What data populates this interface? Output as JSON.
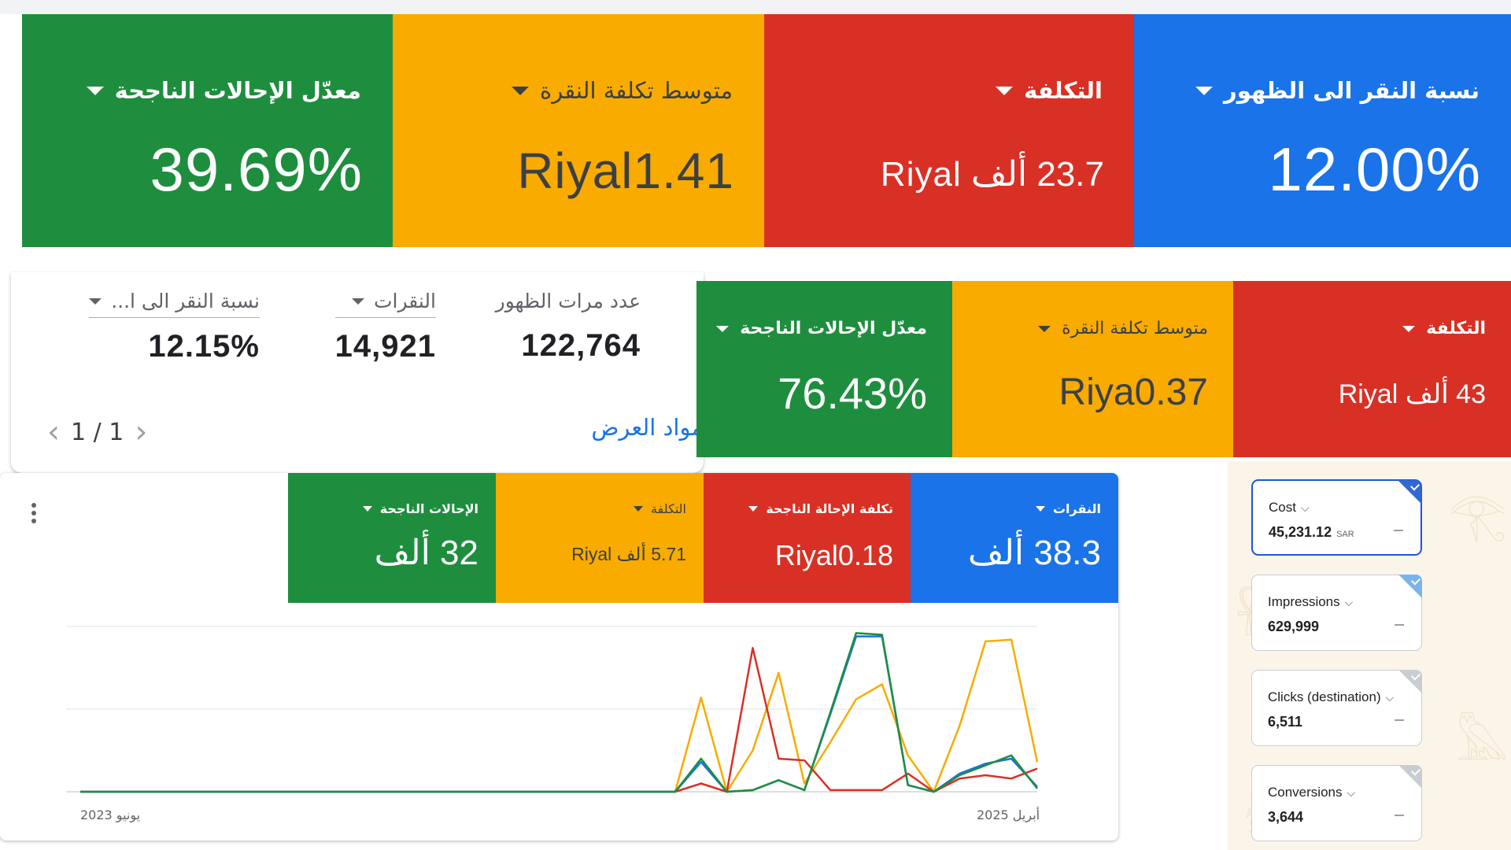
{
  "colors": {
    "blue": "#1a73e8",
    "red": "#d93025",
    "yellow": "#f9ab00",
    "green": "#1e8e3e"
  },
  "row1": [
    {
      "label": "نسبة النقر الى الظهور",
      "value": "12.00%"
    },
    {
      "label": "التكلفة",
      "value": "23.7 ألف Riyal"
    },
    {
      "label": "متوسط تكلفة النقرة",
      "value": "Riyal1.41"
    },
    {
      "label": "معدّل الإحالات الناجحة",
      "value": "39.69%"
    }
  ],
  "summary": {
    "stats": [
      {
        "label": "عدد مرات الظهور",
        "value": "122,764"
      },
      {
        "label": "النقرات",
        "value": "14,921"
      },
      {
        "label": "نسبة النقر الى ا...",
        "value": "12.15%"
      }
    ],
    "pager": "1 / 1",
    "show_link": "مواد العرض"
  },
  "row2": [
    {
      "label": "التكلفة",
      "value": "43 ألف Riyal"
    },
    {
      "label": "متوسط تكلفة النقرة",
      "value": "Riya0.37"
    },
    {
      "label": "معدّل الإحالات الناجحة",
      "value": "76.43%"
    }
  ],
  "row3": [
    {
      "label": "النقرات",
      "value": "38.3 ألف"
    },
    {
      "label": "تكلفة الإحالة الناجحة",
      "value": "Riyal0.18"
    },
    {
      "label": "التكلفة",
      "value": "5.71 ألف Riyal"
    },
    {
      "label": "الإحالات الناجحة",
      "value": "32 ألف"
    }
  ],
  "chart_data": {
    "type": "line",
    "x_start_label": "يونيو 2023",
    "x_end_label": "أبريل 2025",
    "grid": true,
    "ylim": [
      0,
      100
    ],
    "series": [
      {
        "color": "#f9ab00",
        "values": [
          0,
          0,
          0,
          0,
          0,
          0,
          0,
          0,
          0,
          0,
          0,
          0,
          0,
          0,
          0,
          0,
          0,
          0,
          0,
          0,
          0,
          0,
          0,
          0,
          57,
          0,
          25,
          72,
          5,
          30,
          56,
          65,
          22,
          0,
          40,
          91,
          92,
          18
        ]
      },
      {
        "color": "#d93025",
        "values": [
          0,
          0,
          0,
          0,
          0,
          0,
          0,
          0,
          0,
          0,
          0,
          0,
          0,
          0,
          0,
          0,
          0,
          0,
          0,
          0,
          0,
          0,
          0,
          0,
          5,
          0,
          87,
          20,
          19,
          1,
          1,
          1,
          11,
          0,
          8,
          10,
          8,
          14
        ]
      },
      {
        "color": "#1a73e8",
        "values": [
          0,
          0,
          0,
          0,
          0,
          0,
          0,
          0,
          0,
          0,
          0,
          0,
          0,
          0,
          0,
          0,
          0,
          0,
          0,
          0,
          0,
          0,
          0,
          0,
          18,
          0,
          1,
          7,
          1,
          47,
          94,
          94,
          4,
          0,
          11,
          17,
          20,
          3
        ]
      },
      {
        "color": "#1e8e3e",
        "values": [
          0,
          0,
          0,
          0,
          0,
          0,
          0,
          0,
          0,
          0,
          0,
          0,
          0,
          0,
          0,
          0,
          0,
          0,
          0,
          0,
          0,
          0,
          0,
          0,
          20,
          0,
          1,
          7,
          1,
          48,
          96,
          95,
          4,
          0,
          10,
          16,
          22,
          2
        ]
      }
    ]
  },
  "sidecards": [
    {
      "title": "Cost",
      "value": "45,231.12",
      "unit": "SAR",
      "accent": "#3367d6"
    },
    {
      "title": "Impressions",
      "value": "629,999",
      "unit": "",
      "accent": "#7ab4ec"
    },
    {
      "title": "Clicks (destination)",
      "value": "6,511",
      "unit": "",
      "accent": "#c9cdd3"
    },
    {
      "title": "Conversions",
      "value": "3,644",
      "unit": "",
      "accent": "#c9cdd3"
    }
  ]
}
